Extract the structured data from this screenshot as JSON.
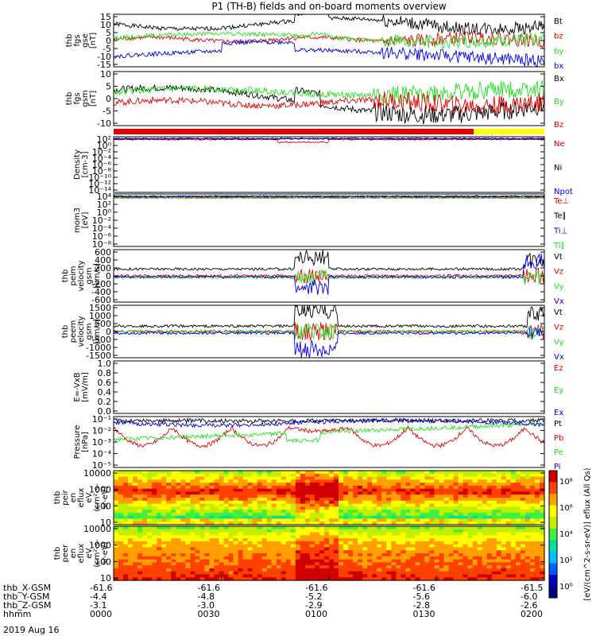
{
  "title": "P1 (TH-B) fields and on-board moments overview",
  "date_label": "2019 Aug 16",
  "colors": {
    "black": "#000000",
    "red": "#e00000",
    "green": "#20e020",
    "blue": "#0000e0",
    "yellow": "#ffff00"
  },
  "time_axis": {
    "rows": [
      {
        "label": "thb_X-GSM",
        "values": [
          "-61.6",
          "-61.6",
          "-61.6",
          "-61.6",
          "-61.5"
        ]
      },
      {
        "label": "thb_Y-GSM",
        "values": [
          "-4.4",
          "-4.8",
          "-5.2",
          "-5.6",
          "-6.0"
        ]
      },
      {
        "label": "thb_Z-GSM",
        "values": [
          "-3.1",
          "-3.0",
          "-2.9",
          "-2.8",
          "-2.6"
        ]
      },
      {
        "label": "hhmm",
        "values": [
          "0000",
          "0030",
          "0100",
          "0130",
          "0200"
        ]
      }
    ]
  },
  "chart_data": [
    {
      "type": "line",
      "id": "fgs_gse",
      "ylabel": [
        "thb",
        "fgs",
        "gse",
        "[nT]"
      ],
      "ylim": [
        -15,
        16
      ],
      "ticks": [
        "15",
        "10",
        "5",
        "0",
        "-5",
        "-10",
        "-15"
      ],
      "series": [
        {
          "name": "Bt",
          "color": "black"
        },
        {
          "name": "bz",
          "color": "red"
        },
        {
          "name": "by",
          "color": "green"
        },
        {
          "name": "bx",
          "color": "blue"
        }
      ]
    },
    {
      "type": "line",
      "id": "fgs_gsm",
      "ylabel": [
        "thb",
        "fgs",
        "gsm",
        "[nT]"
      ],
      "ylim": [
        -15,
        10
      ],
      "ticks": [
        "10",
        "5",
        "0",
        "-5",
        "-10"
      ],
      "series": [
        {
          "name": "Bx",
          "color": "black"
        },
        {
          "name": "By",
          "color": "green"
        },
        {
          "name": "Bz",
          "color": "red"
        }
      ]
    },
    {
      "type": "line",
      "id": "density",
      "ylabel": [
        "Density",
        "[cm-3]"
      ],
      "log": true,
      "ticks": [
        "10²",
        "10⁰",
        "10⁻²",
        "10⁻⁴",
        "10⁻⁶",
        "10⁻⁸",
        "10⁻¹⁰",
        "10⁻¹²",
        "10⁻¹⁴"
      ],
      "series": [
        {
          "name": "Ne",
          "color": "red"
        },
        {
          "name": "Ni",
          "color": "black"
        },
        {
          "name": "Npot",
          "color": "blue"
        }
      ]
    },
    {
      "type": "line",
      "id": "temperature",
      "ylabel": [
        "mom3",
        "[eV]"
      ],
      "log": true,
      "ticks": [
        "10⁴",
        "10²",
        "10⁰",
        "10⁻²",
        "10⁻⁴",
        "10⁻⁶",
        "10⁻⁸"
      ],
      "series": [
        {
          "name": "Te⊥",
          "color": "red"
        },
        {
          "name": "Te∥",
          "color": "black"
        },
        {
          "name": "Ti⊥",
          "color": "blue"
        },
        {
          "name": "Ti∥",
          "color": "green"
        }
      ]
    },
    {
      "type": "line",
      "id": "peim_velocity",
      "ylabel": [
        "thb",
        "peim",
        "velocity",
        "gsm",
        "[km/s]"
      ],
      "ylim": [
        -650,
        650
      ],
      "ticks": [
        "600",
        "400",
        "200",
        "0",
        "-200",
        "-400",
        "-600"
      ],
      "series": [
        {
          "name": "Vt",
          "color": "black"
        },
        {
          "name": "Vz",
          "color": "red"
        },
        {
          "name": "Vy",
          "color": "green"
        },
        {
          "name": "Vx",
          "color": "blue"
        }
      ]
    },
    {
      "type": "line",
      "id": "peem_velocity",
      "ylabel": [
        "thb",
        "peem",
        "velocity",
        "gsm",
        "[km/s]"
      ],
      "ylim": [
        -1600,
        1600
      ],
      "ticks": [
        "1500",
        "1000",
        "500",
        "0",
        "-500",
        "-1000",
        "-1500"
      ],
      "series": [
        {
          "name": "Vt",
          "color": "black"
        },
        {
          "name": "Vz",
          "color": "red"
        },
        {
          "name": "Vy",
          "color": "green"
        },
        {
          "name": "Vx",
          "color": "blue"
        }
      ]
    },
    {
      "type": "line",
      "id": "efield",
      "ylabel": [
        "E=-VxB",
        "[mV/m]"
      ],
      "ylim": [
        0,
        1
      ],
      "ticks": [
        "1.0",
        "0.8",
        "0.6",
        "0.4",
        "0.2",
        "0.0"
      ],
      "series": [
        {
          "name": "Ez",
          "color": "red"
        },
        {
          "name": "Ey",
          "color": "green"
        },
        {
          "name": "Ex",
          "color": "blue"
        }
      ]
    },
    {
      "type": "line",
      "id": "pressure",
      "ylabel": [
        "Pressure",
        "[nPa]"
      ],
      "log": true,
      "ticks": [
        "10⁻¹",
        "10⁻²",
        "10⁻³",
        "10⁻⁴",
        "10⁻⁵"
      ],
      "series": [
        {
          "name": "Pt",
          "color": "black"
        },
        {
          "name": "Pb",
          "color": "red"
        },
        {
          "name": "Pe",
          "color": "green"
        },
        {
          "name": "Pi",
          "color": "blue"
        }
      ]
    },
    {
      "type": "heatmap",
      "id": "peir_spec",
      "ylabel": [
        "thb",
        "peir",
        "en",
        "eflux",
        "eV",
        "(cm²-s-",
        "sr-eV)"
      ],
      "log": true,
      "ticks": [
        "10000",
        "1000",
        "100",
        "10"
      ]
    },
    {
      "type": "heatmap",
      "id": "peer_spec",
      "ylabel": [
        "thb",
        "peer",
        "en",
        "eflux",
        "eV",
        "(cm²-s-",
        "sr-eV)"
      ],
      "log": true,
      "ticks": [
        "10000",
        "1000",
        "100",
        "10"
      ]
    }
  ],
  "colorbar": {
    "ticks": [
      "10⁸",
      "10⁶",
      "10⁴",
      "10²",
      "10⁰"
    ],
    "label": "[eV/(cm^2-s-sr-eV)] eflux (All Qs)"
  }
}
